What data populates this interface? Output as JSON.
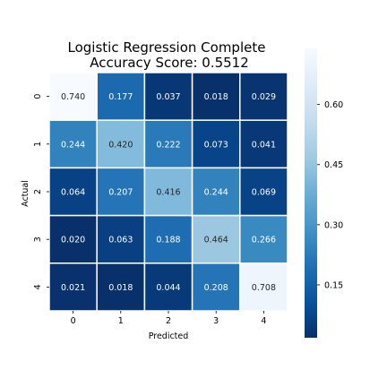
{
  "chart_data": {
    "type": "heatmap",
    "title": [
      "Logistic Regression Complete",
      "Accuracy Score: 0.5512"
    ],
    "xlabel": "Predicted",
    "ylabel": "Actual",
    "x_categories": [
      "0",
      "1",
      "2",
      "3",
      "4"
    ],
    "y_categories": [
      "0",
      "1",
      "2",
      "3",
      "4"
    ],
    "values": [
      [
        0.74,
        0.177,
        0.037,
        0.018,
        0.029
      ],
      [
        0.244,
        0.42,
        0.222,
        0.073,
        0.041
      ],
      [
        0.064,
        0.207,
        0.416,
        0.244,
        0.069
      ],
      [
        0.02,
        0.063,
        0.188,
        0.464,
        0.266
      ],
      [
        0.021,
        0.018,
        0.044,
        0.208,
        0.708
      ]
    ],
    "labels": [
      [
        "0.740",
        "0.177",
        "0.037",
        "0.018",
        "0.029"
      ],
      [
        "0.244",
        "0.420",
        "0.222",
        "0.073",
        "0.041"
      ],
      [
        "0.064",
        "0.207",
        "0.416",
        "0.244",
        "0.069"
      ],
      [
        "0.020",
        "0.063",
        "0.188",
        "0.464",
        "0.266"
      ],
      [
        "0.021",
        "0.018",
        "0.044",
        "0.208",
        "0.708"
      ]
    ],
    "colormap": "Blues_r",
    "color_range": [
      0.018,
      0.74
    ],
    "colorbar": {
      "ticks": [
        0.15,
        0.3,
        0.45,
        0.6
      ],
      "tick_labels": [
        "0.15",
        "0.30",
        "0.45",
        "0.60"
      ],
      "placement": "right"
    },
    "grid": false
  }
}
